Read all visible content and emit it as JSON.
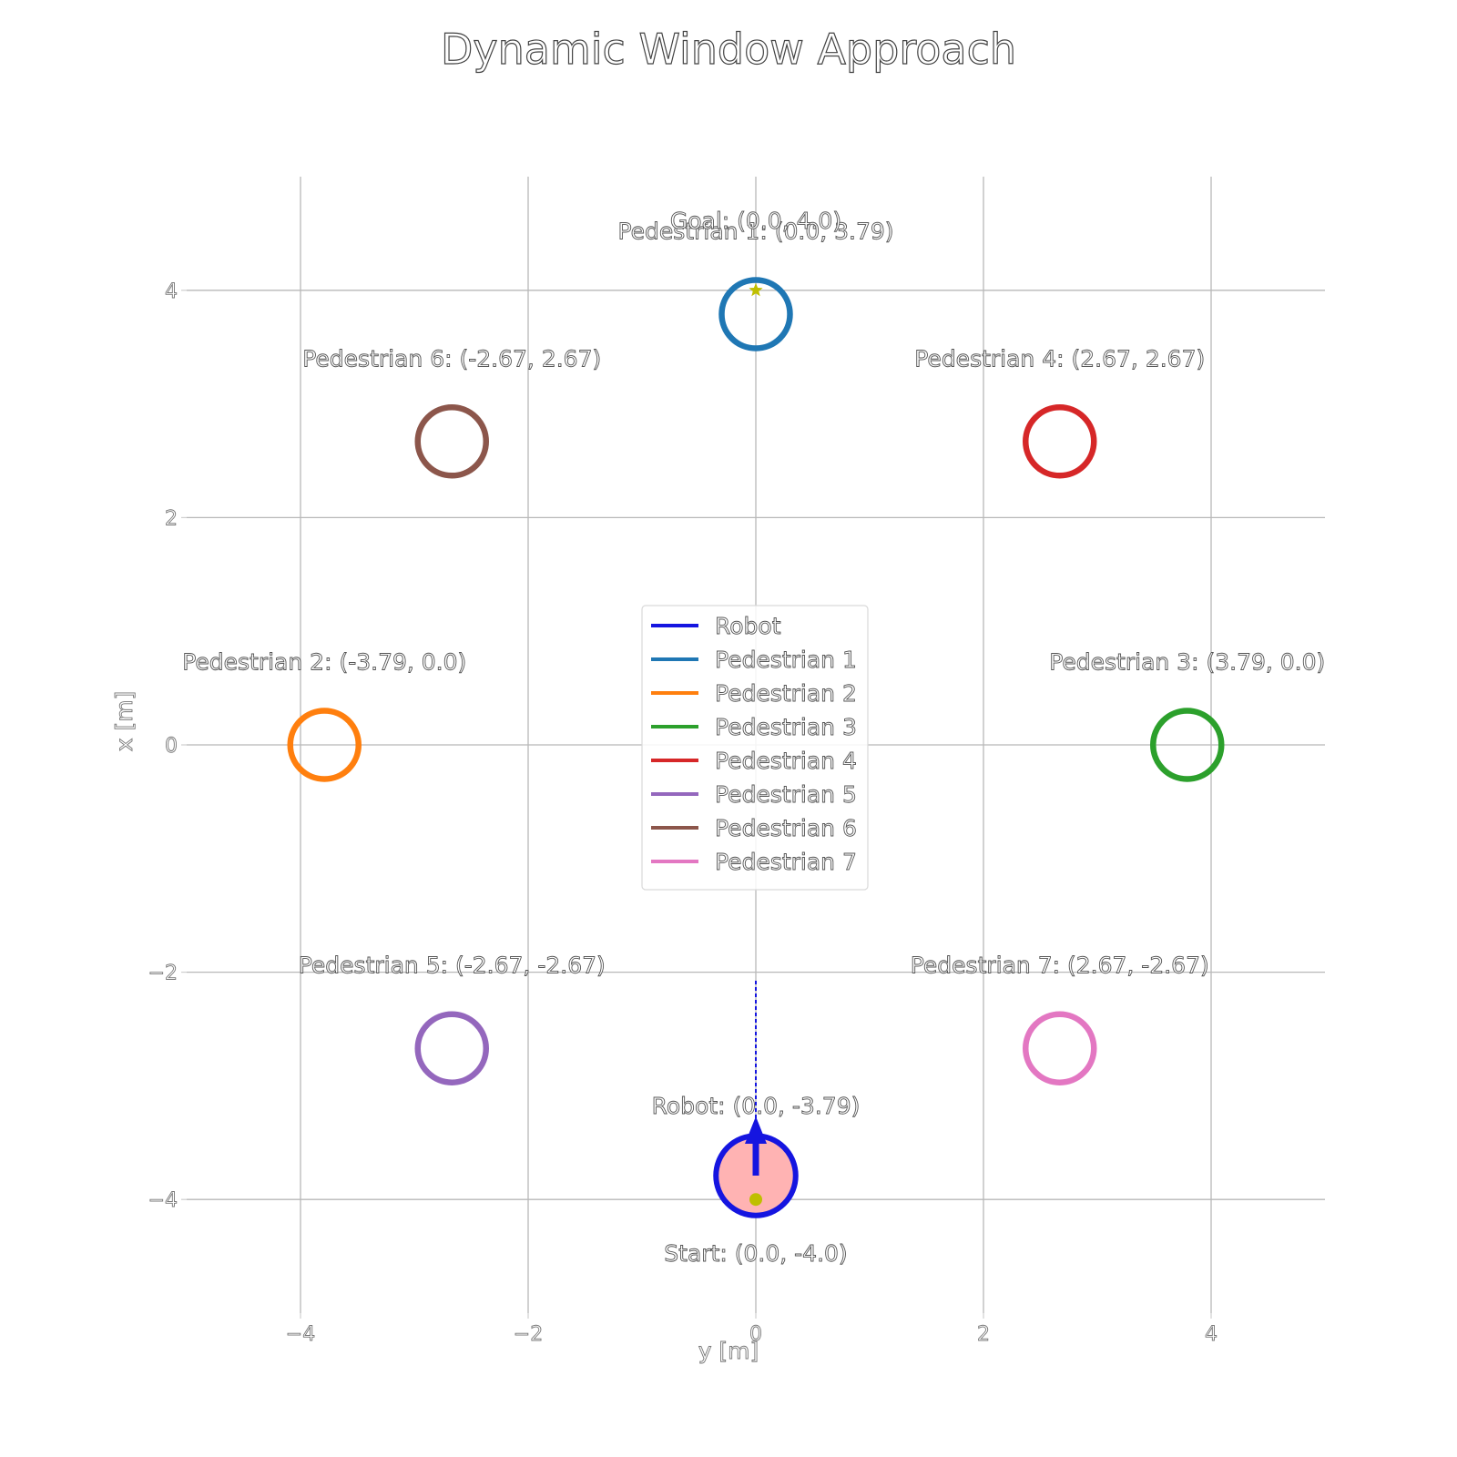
{
  "chart_data": {
    "type": "scatter",
    "title": "Dynamic Window Approach",
    "xlabel": "y [m]",
    "ylabel": "x [m]",
    "xlim": [
      -5,
      5
    ],
    "ylim": [
      -5,
      5
    ],
    "xticks": [
      -4,
      -2,
      0,
      2,
      4
    ],
    "yticks": [
      -4,
      -2,
      0,
      2,
      4
    ],
    "xtick_labels": [
      "−4",
      "−2",
      "0",
      "2",
      "4"
    ],
    "ytick_labels": [
      "−4",
      "−2",
      "0",
      "2",
      "4"
    ],
    "grid": true,
    "legend_position": "center",
    "goal": {
      "x": 0.0,
      "y": 4.0,
      "label": "Goal: (0.0, 4.0)",
      "color": "#bfbf00"
    },
    "start": {
      "x": 0.0,
      "y": -4.0,
      "label": "Start: (0.0, -4.0)",
      "color": "#bfbf00"
    },
    "robot": {
      "name": "Robot",
      "x": 0.0,
      "y": -3.79,
      "radius": 0.35,
      "label": "Robot: (0.0, -3.79)",
      "color": "#1515e0",
      "fill": "#ffb3b3",
      "heading_deg": 90,
      "predicted_path": {
        "x": [
          0.0,
          0.0
        ],
        "y": [
          -3.79,
          -2.07
        ]
      }
    },
    "pedestrians": [
      {
        "name": "Pedestrian 1",
        "x": 0.0,
        "y": 3.79,
        "radius": 0.3,
        "label": "Pedestrian 1: (0.0, 3.79)",
        "color": "#1f77b4"
      },
      {
        "name": "Pedestrian 2",
        "x": -3.79,
        "y": 0.0,
        "radius": 0.3,
        "label": "Pedestrian 2: (-3.79, 0.0)",
        "color": "#ff7f0e"
      },
      {
        "name": "Pedestrian 3",
        "x": 3.79,
        "y": 0.0,
        "radius": 0.3,
        "label": "Pedestrian 3: (3.79, 0.0)",
        "color": "#2ca02c"
      },
      {
        "name": "Pedestrian 4",
        "x": 2.67,
        "y": 2.67,
        "radius": 0.3,
        "label": "Pedestrian 4: (2.67, 2.67)",
        "color": "#d62728"
      },
      {
        "name": "Pedestrian 5",
        "x": -2.67,
        "y": -2.67,
        "radius": 0.3,
        "label": "Pedestrian 5: (-2.67, -2.67)",
        "color": "#9467bd"
      },
      {
        "name": "Pedestrian 6",
        "x": -2.67,
        "y": 2.67,
        "radius": 0.3,
        "label": "Pedestrian 6: (-2.67, 2.67)",
        "color": "#8c564b"
      },
      {
        "name": "Pedestrian 7",
        "x": 2.67,
        "y": -2.67,
        "radius": 0.3,
        "label": "Pedestrian 7: (2.67, -2.67)",
        "color": "#e377c2"
      }
    ],
    "legend": [
      {
        "label": "Robot",
        "color": "#1515e0"
      },
      {
        "label": "Pedestrian 1",
        "color": "#1f77b4"
      },
      {
        "label": "Pedestrian 2",
        "color": "#ff7f0e"
      },
      {
        "label": "Pedestrian 3",
        "color": "#2ca02c"
      },
      {
        "label": "Pedestrian 4",
        "color": "#d62728"
      },
      {
        "label": "Pedestrian 5",
        "color": "#9467bd"
      },
      {
        "label": "Pedestrian 6",
        "color": "#8c564b"
      },
      {
        "label": "Pedestrian 7",
        "color": "#e377c2"
      }
    ]
  }
}
